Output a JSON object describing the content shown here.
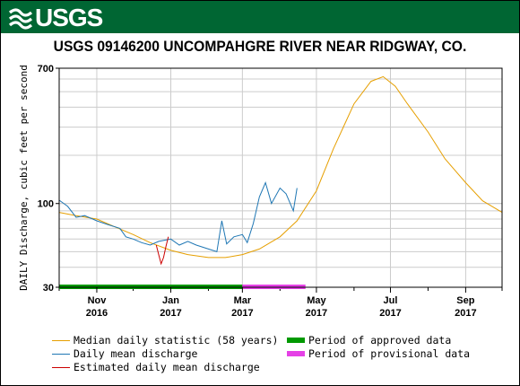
{
  "banner": {
    "logo_text": "USGS",
    "color": "#006633"
  },
  "chart_data": {
    "type": "line",
    "title": "USGS 09146200 UNCOMPAHGRE RIVER NEAR RIDGWAY, CO.",
    "ylabel": "DAILY Discharge, cubic feet per second",
    "yscale": "log",
    "ylim": [
      30,
      700
    ],
    "y_ticks": [
      {
        "value": 30,
        "label": "30"
      },
      {
        "value": 100,
        "label": "100"
      },
      {
        "value": 700,
        "label": "700"
      }
    ],
    "y_grid": [
      40,
      50,
      60,
      70,
      80,
      90,
      200,
      300,
      400,
      500,
      600
    ],
    "xlim": [
      "2016-10-01",
      "2017-10-01"
    ],
    "x_ticks": [
      {
        "date": "2016-11-01",
        "month": "Nov",
        "year": "2016"
      },
      {
        "date": "2017-01-01",
        "month": "Jan",
        "year": "2017"
      },
      {
        "date": "2017-03-01",
        "month": "Mar",
        "year": "2017"
      },
      {
        "date": "2017-05-01",
        "month": "May",
        "year": "2017"
      },
      {
        "date": "2017-07-01",
        "month": "Jul",
        "year": "2017"
      },
      {
        "date": "2017-09-01",
        "month": "Sep",
        "year": "2017"
      }
    ],
    "x_minor_ticks": [
      "2016-10-01",
      "2016-12-01",
      "2017-02-01",
      "2017-04-01",
      "2017-06-01",
      "2017-08-01",
      "2017-10-01"
    ],
    "series": [
      {
        "name": "Median daily statistic (58 years)",
        "color": "#E69F00",
        "points": [
          [
            "2016-10-01",
            88
          ],
          [
            "2016-10-15",
            84
          ],
          [
            "2016-11-01",
            80
          ],
          [
            "2016-11-15",
            72
          ],
          [
            "2016-12-01",
            64
          ],
          [
            "2016-12-15",
            57
          ],
          [
            "2017-01-01",
            51
          ],
          [
            "2017-01-15",
            48
          ],
          [
            "2017-02-01",
            46
          ],
          [
            "2017-02-15",
            46
          ],
          [
            "2017-03-01",
            48
          ],
          [
            "2017-03-15",
            52
          ],
          [
            "2017-04-01",
            62
          ],
          [
            "2017-04-15",
            78
          ],
          [
            "2017-05-01",
            120
          ],
          [
            "2017-05-15",
            220
          ],
          [
            "2017-06-01",
            420
          ],
          [
            "2017-06-15",
            580
          ],
          [
            "2017-06-25",
            620
          ],
          [
            "2017-07-05",
            540
          ],
          [
            "2017-07-15",
            420
          ],
          [
            "2017-08-01",
            280
          ],
          [
            "2017-08-15",
            190
          ],
          [
            "2017-09-01",
            135
          ],
          [
            "2017-09-15",
            104
          ],
          [
            "2017-10-01",
            88
          ]
        ]
      },
      {
        "name": "Daily mean discharge",
        "color": "#1f77b4",
        "points": [
          [
            "2016-10-01",
            105
          ],
          [
            "2016-10-08",
            96
          ],
          [
            "2016-10-15",
            82
          ],
          [
            "2016-10-22",
            84
          ],
          [
            "2016-11-01",
            78
          ],
          [
            "2016-11-10",
            74
          ],
          [
            "2016-11-20",
            70
          ],
          [
            "2016-11-25",
            62
          ],
          [
            "2016-12-01",
            60
          ],
          [
            "2016-12-08",
            57
          ],
          [
            "2016-12-15",
            55
          ],
          [
            "2016-12-22",
            58
          ],
          [
            "2017-01-01",
            60
          ],
          [
            "2017-01-08",
            55
          ],
          [
            "2017-01-15",
            58
          ],
          [
            "2017-01-22",
            55
          ],
          [
            "2017-02-01",
            52
          ],
          [
            "2017-02-08",
            50
          ],
          [
            "2017-02-12",
            78
          ],
          [
            "2017-02-16",
            56
          ],
          [
            "2017-02-22",
            62
          ],
          [
            "2017-03-01",
            64
          ],
          [
            "2017-03-05",
            57
          ],
          [
            "2017-03-10",
            75
          ],
          [
            "2017-03-15",
            110
          ],
          [
            "2017-03-20",
            135
          ],
          [
            "2017-03-25",
            100
          ],
          [
            "2017-04-01",
            125
          ],
          [
            "2017-04-06",
            115
          ],
          [
            "2017-04-12",
            90
          ],
          [
            "2017-04-15",
            125
          ]
        ]
      },
      {
        "name": "Estimated daily mean discharge",
        "color": "#cc0000",
        "points": [
          [
            "2016-12-20",
            55
          ],
          [
            "2016-12-22",
            48
          ],
          [
            "2016-12-24",
            42
          ],
          [
            "2016-12-26",
            46
          ],
          [
            "2016-12-28",
            54
          ],
          [
            "2016-12-30",
            62
          ]
        ]
      }
    ],
    "periods": [
      {
        "name": "Period of approved data",
        "color": "#009900",
        "start": "2016-10-01",
        "end": "2017-03-01"
      },
      {
        "name": "Period of provisional data",
        "color": "#e541e6",
        "start": "2017-03-01",
        "end": "2017-04-22"
      }
    ]
  },
  "legend": [
    {
      "label": "Median daily statistic (58 years)",
      "color": "#E69F00",
      "kind": "line"
    },
    {
      "label": "Period of approved data",
      "color": "#009900",
      "kind": "bar"
    },
    {
      "label": "Daily mean discharge",
      "color": "#1f77b4",
      "kind": "line"
    },
    {
      "label": "Period of provisional data",
      "color": "#e541e6",
      "kind": "bar"
    },
    {
      "label": "Estimated daily mean discharge",
      "color": "#cc0000",
      "kind": "line"
    }
  ]
}
